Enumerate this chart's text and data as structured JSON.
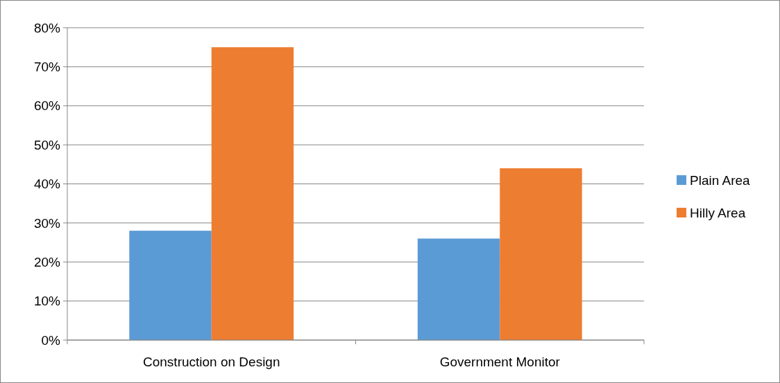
{
  "chart_data": {
    "type": "bar",
    "categories": [
      "Construction on Design",
      "Government Monitor"
    ],
    "series": [
      {
        "name": "Plain Area",
        "color": "#5b9bd5",
        "values": [
          28,
          26
        ]
      },
      {
        "name": "Hilly Area",
        "color": "#ed7d31",
        "values": [
          75,
          44
        ]
      }
    ],
    "ylim": [
      0,
      80
    ],
    "yticks": [
      {
        "value": 0,
        "label": "0%"
      },
      {
        "value": 10,
        "label": "10%"
      },
      {
        "value": 20,
        "label": "20%"
      },
      {
        "value": 30,
        "label": "30%"
      },
      {
        "value": 40,
        "label": "40%"
      },
      {
        "value": 50,
        "label": "50%"
      },
      {
        "value": 60,
        "label": "60%"
      },
      {
        "value": 70,
        "label": "70%"
      },
      {
        "value": 80,
        "label": "80%"
      }
    ],
    "grid": "y",
    "legend": "right"
  }
}
